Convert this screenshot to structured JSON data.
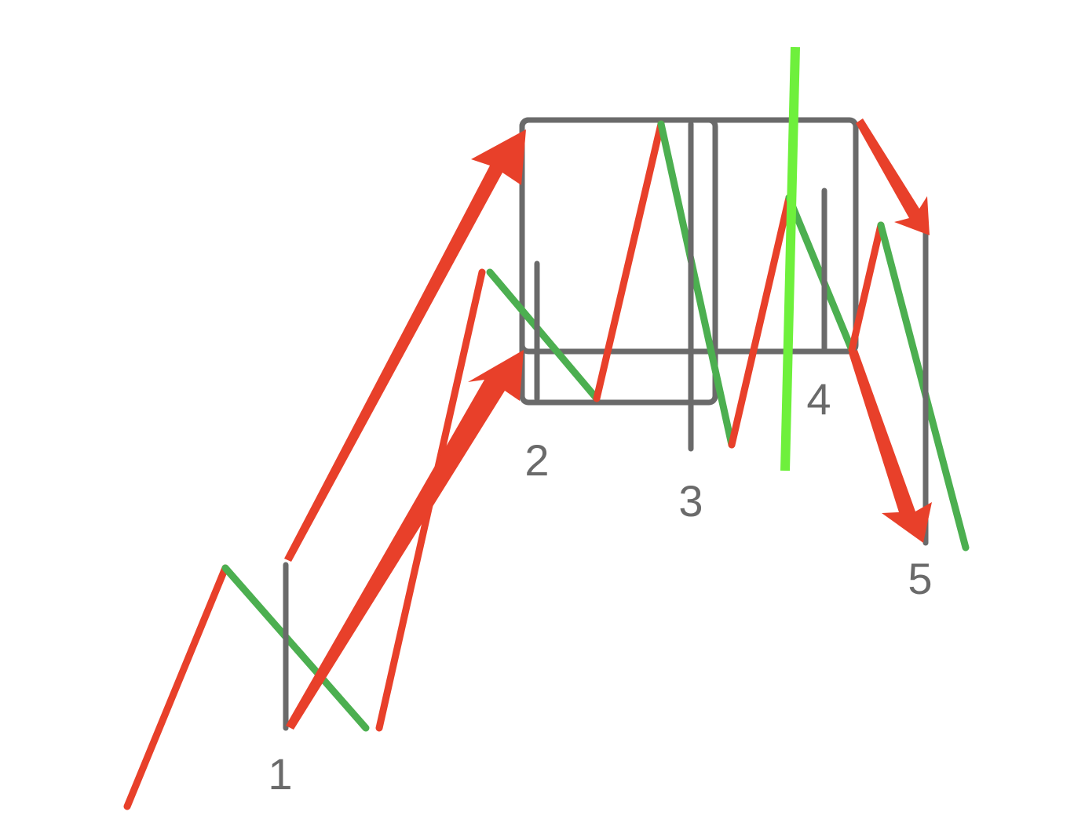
{
  "colors": {
    "up_leg": "#e8402a",
    "down_leg": "#4caf50",
    "marker": "#6a6a6a",
    "arrow": "#e8402a",
    "highlight_line": "#6ef03c",
    "label": "#6a6a6a"
  },
  "labels": {
    "p1": "1",
    "p2": "2",
    "p3": "3",
    "p4": "4",
    "p5": "5"
  }
}
